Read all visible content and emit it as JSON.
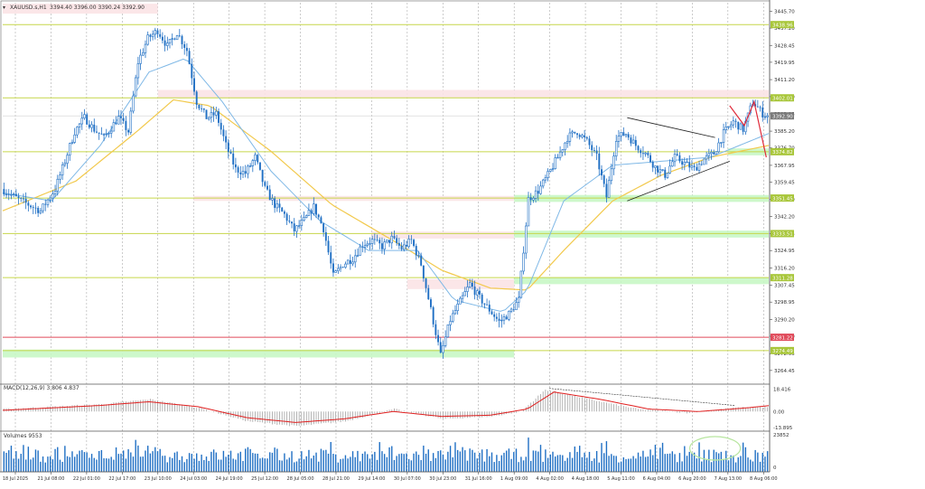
{
  "header": {
    "symbol_text": "XAUUSD.s,H1",
    "ohlc_text": "3394.40 3396.00 3390.24 3392.90"
  },
  "indicators": {
    "macd_label": "MACD(12,26,9) 3.806 4.837",
    "volume_label": "Volumes 9553"
  },
  "colors": {
    "bull": "#1f6fc4",
    "bear": "#1f6fc4",
    "ema_fast": "#7fb8e6",
    "ema_slow": "#f2c94c",
    "resistance_zone": "#fbe3e6",
    "support_zone": "#c8f7c5",
    "level_line": "#c6d64a",
    "red_line": "#e04a5a",
    "macd_signal": "#e02020",
    "macd_hist": "#a0a0a0",
    "volume": "#1f6fc4",
    "forecast": "#e02a3a"
  },
  "chart_data": {
    "type": "candlestick",
    "symbol": "XAUUSD.s",
    "timeframe": "H1",
    "price_axis": {
      "range": [
        3258.0,
        3450.0
      ],
      "ticks": [
        "3445.70",
        "3437.20",
        "3428.45",
        "3419.95",
        "3411.20",
        "3402.60",
        "3393.95",
        "3385.20",
        "3376.70",
        "3367.95",
        "3359.45",
        "3350.70",
        "3342.20",
        "3333.45",
        "3324.95",
        "3316.20",
        "3307.45",
        "3298.95",
        "3290.20",
        "3281.70",
        "3272.95",
        "3264.45"
      ]
    },
    "x_ticks": [
      "18 Jul 2025",
      "21 Jul 08:00",
      "22 Jul 01:00",
      "22 Jul 17:00",
      "23 Jul 10:00",
      "24 Jul 03:00",
      "24 Jul 19:00",
      "25 Jul 12:00",
      "28 Jul 05:00",
      "28 Jul 21:00",
      "29 Jul 14:00",
      "30 Jul 07:00",
      "30 Jul 23:00",
      "31 Jul 16:00",
      "1 Aug 09:00",
      "4 Aug 02:00",
      "4 Aug 18:00",
      "5 Aug 11:00",
      "6 Aug 04:00",
      "6 Aug 20:00",
      "7 Aug 13:00",
      "8 Aug 06:00"
    ],
    "key_levels": [
      {
        "price": 3438.96,
        "label": "3438.96",
        "kind": "level"
      },
      {
        "price": 3402.01,
        "label": "3402.01",
        "kind": "level"
      },
      {
        "price": 3392.9,
        "label": "3392.90",
        "kind": "current"
      },
      {
        "price": 3374.82,
        "label": "3374.82",
        "kind": "level"
      },
      {
        "price": 3351.45,
        "label": "3351.45",
        "kind": "level"
      },
      {
        "price": 3333.51,
        "label": "3333.51",
        "kind": "level"
      },
      {
        "price": 3311.28,
        "label": "3311.28",
        "kind": "level"
      },
      {
        "price": 3281.22,
        "label": "3281.22",
        "kind": "red"
      },
      {
        "price": 3274.49,
        "label": "3274.49",
        "kind": "level"
      }
    ],
    "zones": [
      {
        "type": "resistance",
        "x_from": "18 Jul 2025",
        "x_to": "23 Jul 10:00",
        "price_from": 3444.5,
        "price_to": 3449.5
      },
      {
        "type": "resistance",
        "x_from": "23 Jul 10:00",
        "x_to": "8 Aug 06:00",
        "price_from": 3402.0,
        "price_to": 3406.0
      },
      {
        "type": "resistance",
        "x_from": "24 Jul 03:00",
        "x_to": "1 Aug 09:00",
        "price_from": 3350.0,
        "price_to": 3352.5
      },
      {
        "type": "resistance",
        "x_from": "29 Jul 14:00",
        "x_to": "1 Aug 09:00",
        "price_from": 3331.0,
        "price_to": 3334.5
      },
      {
        "type": "resistance",
        "x_from": "30 Jul 07:00",
        "x_to": "1 Aug 09:00",
        "price_from": 3305.5,
        "price_to": 3310.5
      },
      {
        "type": "support",
        "x_from": "7 Aug 13:00",
        "x_to": "8 Aug 06:00",
        "price_from": 3373.0,
        "price_to": 3376.5
      },
      {
        "type": "support",
        "x_from": "1 Aug 09:00",
        "x_to": "8 Aug 06:00",
        "price_from": 3349.5,
        "price_to": 3353.0
      },
      {
        "type": "support",
        "x_from": "1 Aug 09:00",
        "x_to": "8 Aug 06:00",
        "price_from": 3331.5,
        "price_to": 3335.0
      },
      {
        "type": "support",
        "x_from": "1 Aug 09:00",
        "x_to": "8 Aug 06:00",
        "price_from": 3308.0,
        "price_to": 3311.5
      },
      {
        "type": "support",
        "x_from": "18 Jul 2025",
        "x_to": "1 Aug 09:00",
        "price_from": 3271.0,
        "price_to": 3275.0
      }
    ],
    "close_path": [
      [
        0,
        3356
      ],
      [
        8,
        3350
      ],
      [
        16,
        3345
      ],
      [
        22,
        3356
      ],
      [
        26,
        3370
      ],
      [
        30,
        3385
      ],
      [
        34,
        3392
      ],
      [
        38,
        3386
      ],
      [
        42,
        3382
      ],
      [
        48,
        3392
      ],
      [
        52,
        3385
      ],
      [
        56,
        3420
      ],
      [
        60,
        3432
      ],
      [
        64,
        3436
      ],
      [
        68,
        3428
      ],
      [
        72,
        3435
      ],
      [
        76,
        3426
      ],
      [
        80,
        3400
      ],
      [
        84,
        3392
      ],
      [
        88,
        3394
      ],
      [
        92,
        3378
      ],
      [
        96,
        3366
      ],
      [
        100,
        3364
      ],
      [
        104,
        3372
      ],
      [
        108,
        3356
      ],
      [
        112,
        3348
      ],
      [
        116,
        3343
      ],
      [
        120,
        3335
      ],
      [
        124,
        3340
      ],
      [
        128,
        3347
      ],
      [
        132,
        3336
      ],
      [
        136,
        3312
      ],
      [
        140,
        3318
      ],
      [
        144,
        3321
      ],
      [
        148,
        3328
      ],
      [
        152,
        3330
      ],
      [
        156,
        3327
      ],
      [
        160,
        3331
      ],
      [
        164,
        3326
      ],
      [
        168,
        3330
      ],
      [
        172,
        3318
      ],
      [
        176,
        3295
      ],
      [
        180,
        3272
      ],
      [
        184,
        3290
      ],
      [
        188,
        3299
      ],
      [
        192,
        3308
      ],
      [
        196,
        3301
      ],
      [
        200,
        3295
      ],
      [
        204,
        3289
      ],
      [
        208,
        3293
      ],
      [
        212,
        3300
      ],
      [
        216,
        3351
      ],
      [
        220,
        3355
      ],
      [
        224,
        3363
      ],
      [
        228,
        3372
      ],
      [
        232,
        3382
      ],
      [
        236,
        3385
      ],
      [
        240,
        3380
      ],
      [
        244,
        3372
      ],
      [
        248,
        3352
      ],
      [
        252,
        3382
      ],
      [
        256,
        3384
      ],
      [
        260,
        3378
      ],
      [
        264,
        3374
      ],
      [
        268,
        3367
      ],
      [
        272,
        3363
      ],
      [
        276,
        3372
      ],
      [
        280,
        3369
      ],
      [
        284,
        3366
      ],
      [
        288,
        3371
      ],
      [
        292,
        3374
      ],
      [
        296,
        3384
      ],
      [
        300,
        3390
      ],
      [
        304,
        3386
      ],
      [
        308,
        3400
      ],
      [
        312,
        3394
      ],
      [
        314,
        3392.9
      ]
    ],
    "total_bars": 314,
    "ema_fast_path": [
      [
        0,
        3354
      ],
      [
        20,
        3350
      ],
      [
        40,
        3378
      ],
      [
        60,
        3415
      ],
      [
        75,
        3422
      ],
      [
        90,
        3400
      ],
      [
        110,
        3365
      ],
      [
        130,
        3340
      ],
      [
        150,
        3325
      ],
      [
        170,
        3325
      ],
      [
        185,
        3300
      ],
      [
        205,
        3294
      ],
      [
        215,
        3305
      ],
      [
        230,
        3350
      ],
      [
        250,
        3368
      ],
      [
        270,
        3370
      ],
      [
        290,
        3372
      ],
      [
        314,
        3384
      ]
    ],
    "ema_slow_path": [
      [
        0,
        3345
      ],
      [
        30,
        3360
      ],
      [
        55,
        3385
      ],
      [
        70,
        3401
      ],
      [
        85,
        3398
      ],
      [
        110,
        3375
      ],
      [
        135,
        3348
      ],
      [
        160,
        3330
      ],
      [
        180,
        3315
      ],
      [
        200,
        3306
      ],
      [
        215,
        3305
      ],
      [
        230,
        3325
      ],
      [
        250,
        3350
      ],
      [
        270,
        3363
      ],
      [
        290,
        3372
      ],
      [
        314,
        3378
      ]
    ],
    "triangle": {
      "upper": [
        [
          256,
          3392
        ],
        [
          292,
          3382
        ]
      ],
      "lower": [
        [
          256,
          3350
        ],
        [
          298,
          3370
        ]
      ]
    },
    "forecast_path": [
      [
        298,
        3398
      ],
      [
        304,
        3388
      ],
      [
        308,
        3400
      ],
      [
        313,
        3372
      ]
    ],
    "macd": {
      "range": [
        -13.895,
        21.0
      ],
      "ticks": [
        "18.416",
        "0.00",
        "-13.895"
      ],
      "hist_path": [
        [
          0,
          2
        ],
        [
          20,
          4
        ],
        [
          40,
          6
        ],
        [
          60,
          10
        ],
        [
          80,
          3
        ],
        [
          100,
          -8
        ],
        [
          120,
          -12
        ],
        [
          140,
          -8
        ],
        [
          160,
          2
        ],
        [
          180,
          -6
        ],
        [
          200,
          -4
        ],
        [
          212,
          0
        ],
        [
          222,
          18
        ],
        [
          240,
          10
        ],
        [
          260,
          2
        ],
        [
          280,
          -1
        ],
        [
          300,
          3
        ],
        [
          314,
          3.8
        ]
      ],
      "signal_path": [
        [
          0,
          1
        ],
        [
          20,
          3
        ],
        [
          40,
          5
        ],
        [
          60,
          8
        ],
        [
          80,
          4
        ],
        [
          100,
          -5
        ],
        [
          120,
          -9
        ],
        [
          140,
          -6
        ],
        [
          160,
          0
        ],
        [
          180,
          -4
        ],
        [
          200,
          -3
        ],
        [
          215,
          2
        ],
        [
          226,
          16
        ],
        [
          245,
          10
        ],
        [
          265,
          2
        ],
        [
          285,
          0
        ],
        [
          305,
          3
        ],
        [
          314,
          4.8
        ]
      ]
    },
    "volumes": {
      "range": [
        0,
        23852
      ],
      "ticks": [
        "23852",
        "0"
      ]
    }
  }
}
